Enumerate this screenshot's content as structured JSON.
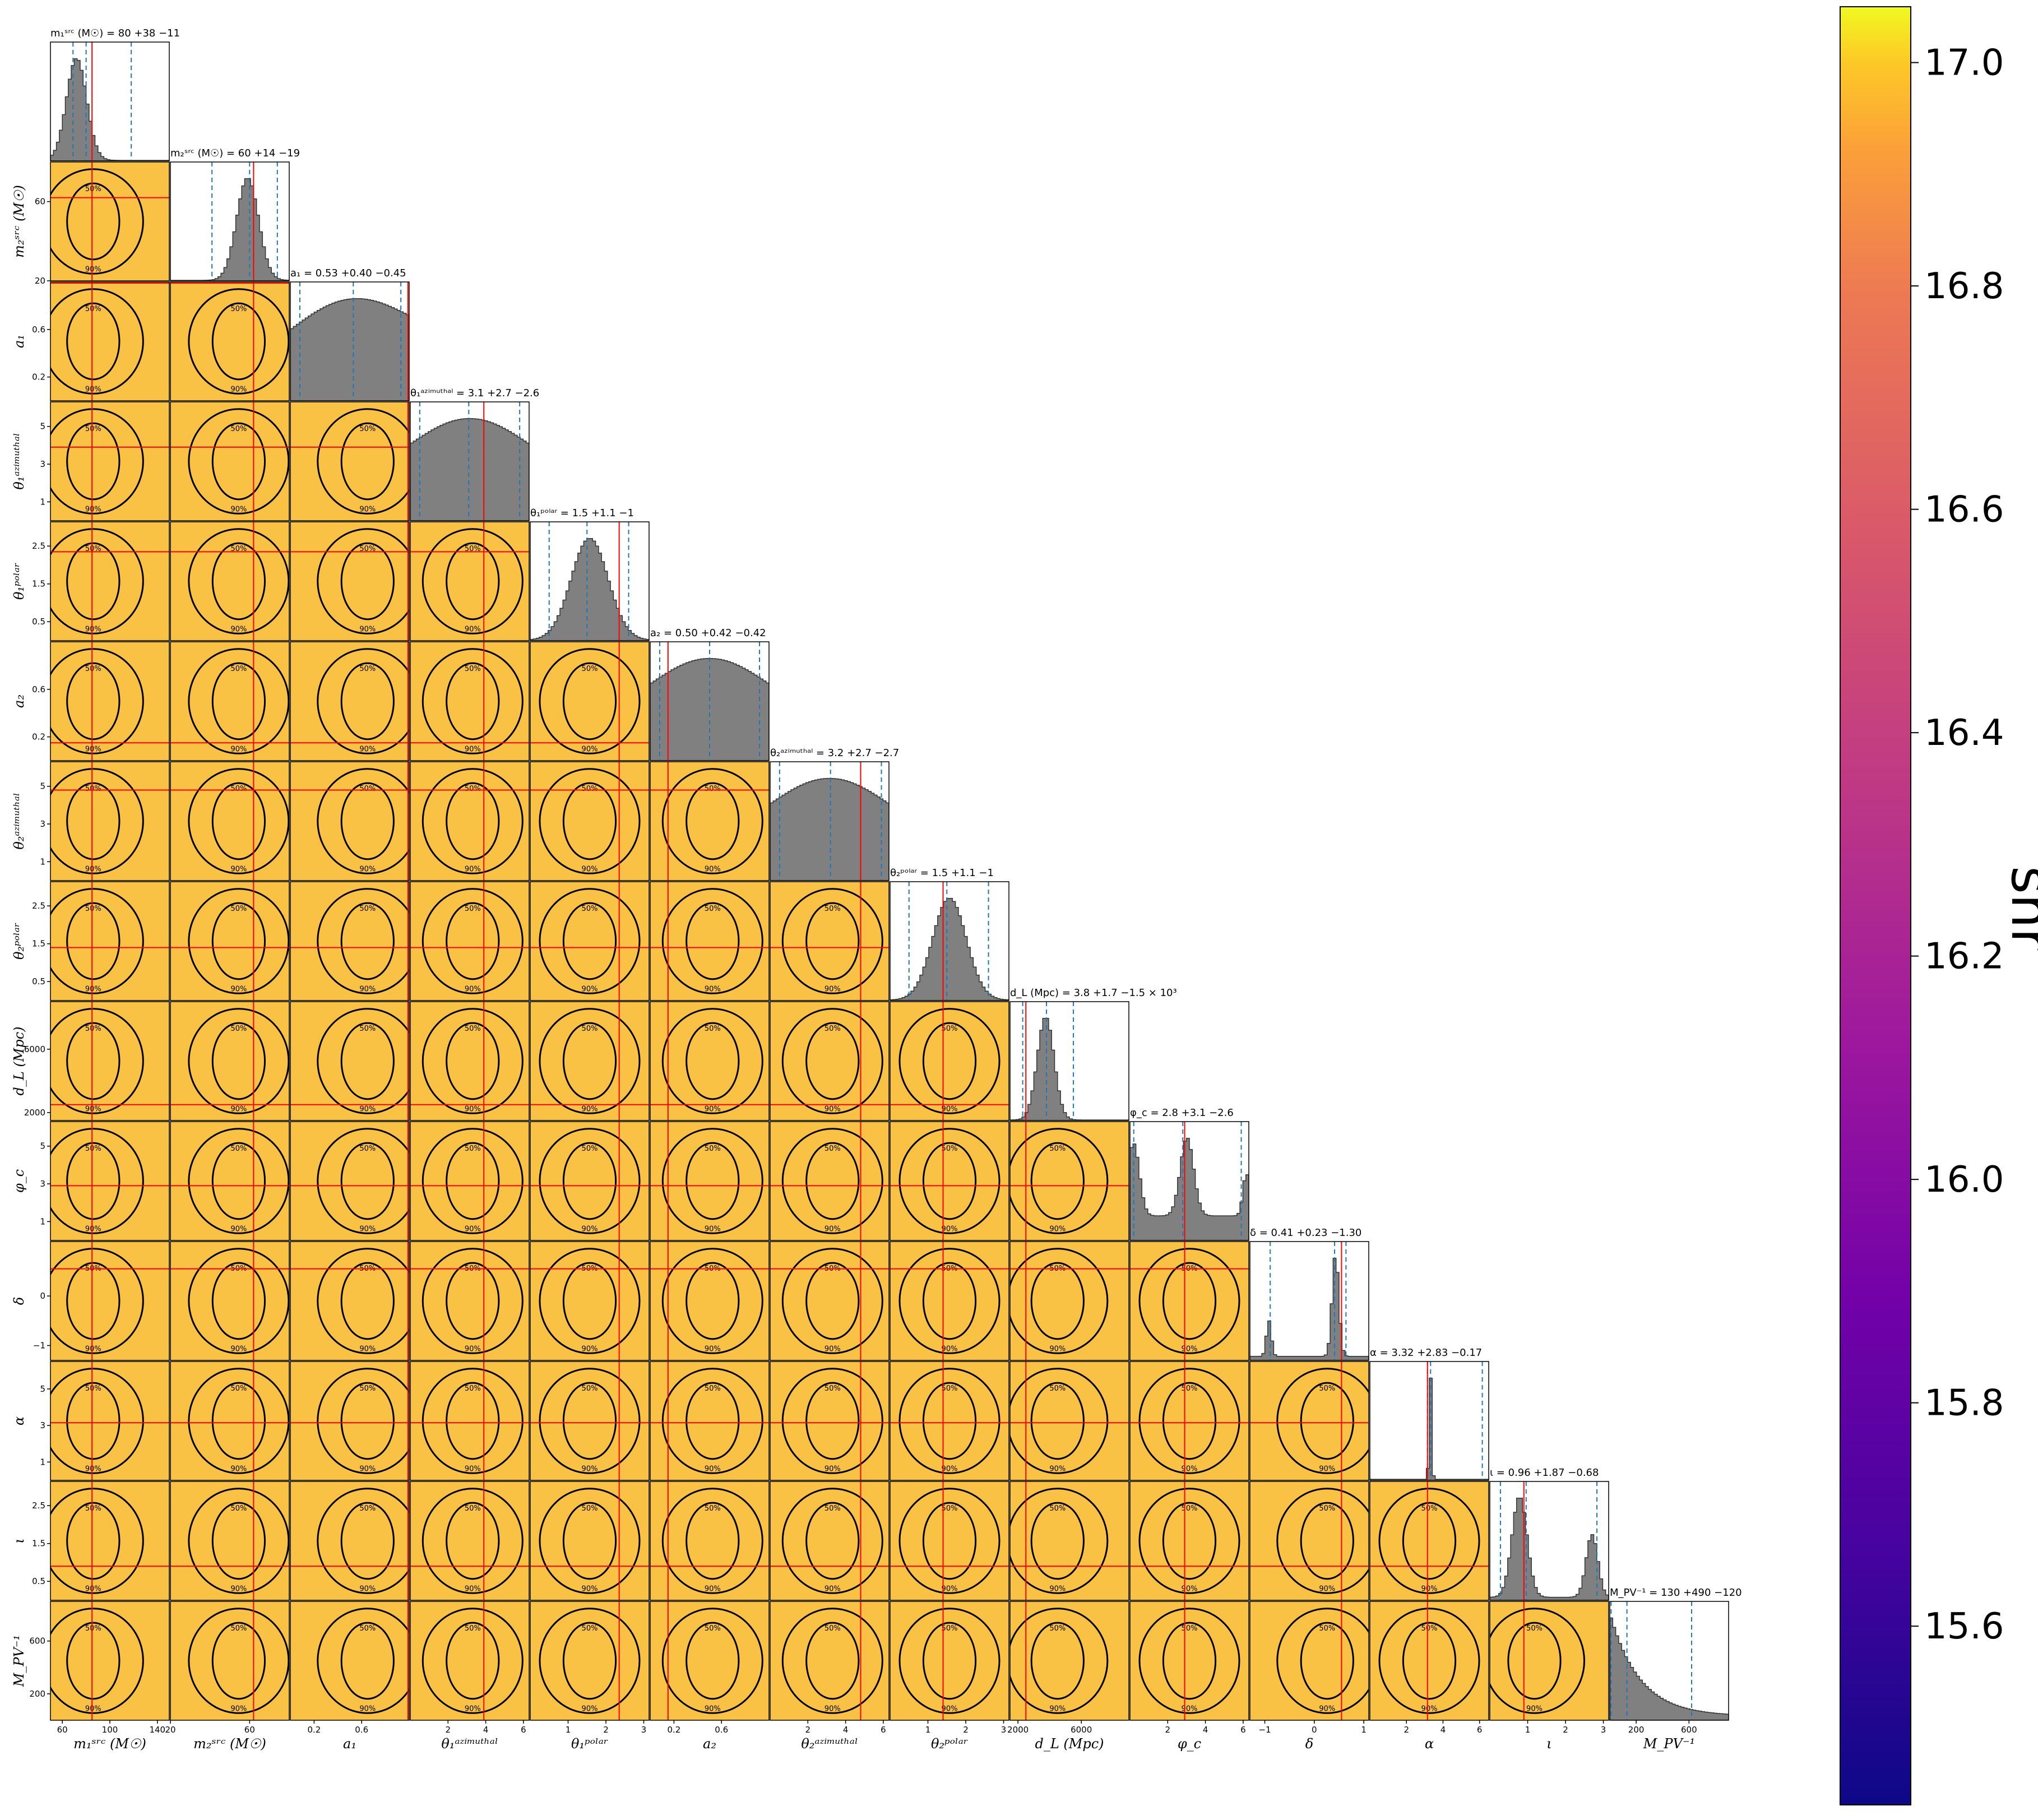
{
  "chart_data": {
    "type": "corner",
    "parameters": [
      {
        "key": "m1",
        "label": "m₁ˢʳᶜ (M☉)",
        "title": "m₁ˢʳᶜ (M☉) = 80 +38 −11",
        "ticks": [
          {
            "v": 60,
            "t": "60"
          },
          {
            "v": 100,
            "t": "100"
          },
          {
            "v": 140,
            "t": "140"
          }
        ],
        "yticks": [],
        "range": [
          50,
          150
        ],
        "truth": 85,
        "median": 80,
        "q": [
          69,
          118
        ],
        "peak": 0.22,
        "width": 0.12
      },
      {
        "key": "m2",
        "label": "m₂ˢʳᶜ (M☉)",
        "title": "m₂ˢʳᶜ (M☉) = 60 +14 −19",
        "ticks": [
          {
            "v": 20,
            "t": "20"
          },
          {
            "v": 60,
            "t": "60"
          }
        ],
        "yticks": [
          {
            "v": 20,
            "t": "20"
          },
          {
            "v": 60,
            "t": "60"
          }
        ],
        "range": [
          20,
          80
        ],
        "truth": 62,
        "median": 60,
        "q": [
          41,
          74
        ],
        "peak": 0.65,
        "width": 0.13
      },
      {
        "key": "a1",
        "label": "a₁",
        "title": "a₁ = 0.53 +0.40 −0.45",
        "ticks": [
          {
            "v": 0.2,
            "t": "0.2"
          },
          {
            "v": 0.6,
            "t": "0.6"
          }
        ],
        "yticks": [
          {
            "v": 0.2,
            "t": "0.2"
          },
          {
            "v": 0.6,
            "t": "0.6"
          }
        ],
        "range": [
          0,
          1
        ],
        "truth": 0.99,
        "median": 0.53,
        "q": [
          0.08,
          0.93
        ],
        "peak": 0.8,
        "width": 0.5
      },
      {
        "key": "th1a",
        "label": "θ₁ᵃᶻⁱᵐᵘᵗʰᵃˡ",
        "title": "θ₁ᵃᶻⁱᵐᵘᵗʰᵃˡ = 3.1 +2.7 −2.6",
        "ticks": [
          {
            "v": 2,
            "t": "2"
          },
          {
            "v": 4,
            "t": "4"
          },
          {
            "v": 6,
            "t": "6"
          }
        ],
        "yticks": [
          {
            "v": 1,
            "t": "1"
          },
          {
            "v": 3,
            "t": "3"
          },
          {
            "v": 5,
            "t": "5"
          }
        ],
        "range": [
          0,
          6.3
        ],
        "truth": 3.9,
        "median": 3.1,
        "q": [
          0.5,
          5.8
        ],
        "peak": 0.55,
        "width": 0.6
      },
      {
        "key": "th1p",
        "label": "θ₁ᵖᵒˡᵃʳ",
        "title": "θ₁ᵖᵒˡᵃʳ = 1.5 +1.1 −1",
        "ticks": [
          {
            "v": 1,
            "t": "1"
          },
          {
            "v": 2,
            "t": "2"
          },
          {
            "v": 3,
            "t": "3"
          }
        ],
        "yticks": [
          {
            "v": 0.5,
            "t": "0.5"
          },
          {
            "v": 1.5,
            "t": "1.5"
          },
          {
            "v": 2.5,
            "t": "2.5"
          }
        ],
        "range": [
          0,
          3.14
        ],
        "truth": 2.35,
        "median": 1.5,
        "q": [
          0.5,
          2.6
        ],
        "peak": 0.5,
        "width": 0.22
      },
      {
        "key": "a2",
        "label": "a₂",
        "title": "a₂ = 0.50 +0.42 −0.42",
        "ticks": [
          {
            "v": 0.2,
            "t": "0.2"
          },
          {
            "v": 0.6,
            "t": "0.6"
          }
        ],
        "yticks": [
          {
            "v": 0.2,
            "t": "0.2"
          },
          {
            "v": 0.6,
            "t": "0.6"
          }
        ],
        "range": [
          0,
          1
        ],
        "truth": 0.15,
        "median": 0.5,
        "q": [
          0.08,
          0.92
        ],
        "peak": 0.55,
        "width": 0.6
      },
      {
        "key": "th2a",
        "label": "θ₂ᵃᶻⁱᵐᵘᵗʰᵃˡ",
        "title": "θ₂ᵃᶻⁱᵐᵘᵗʰᵃˡ = 3.2 +2.7 −2.7",
        "ticks": [
          {
            "v": 2,
            "t": "2"
          },
          {
            "v": 4,
            "t": "4"
          },
          {
            "v": 6,
            "t": "6"
          }
        ],
        "yticks": [
          {
            "v": 1,
            "t": "1"
          },
          {
            "v": 3,
            "t": "3"
          },
          {
            "v": 5,
            "t": "5"
          }
        ],
        "range": [
          0,
          6.3
        ],
        "truth": 4.8,
        "median": 3.2,
        "q": [
          0.5,
          5.9
        ],
        "peak": 0.55,
        "width": 0.6
      },
      {
        "key": "th2p",
        "label": "θ₂ᵖᵒˡᵃʳ",
        "title": "θ₂ᵖᵒˡᵃʳ = 1.5 +1.1 −1",
        "ticks": [
          {
            "v": 1,
            "t": "1"
          },
          {
            "v": 2,
            "t": "2"
          },
          {
            "v": 3,
            "t": "3"
          }
        ],
        "yticks": [
          {
            "v": 0.5,
            "t": "0.5"
          },
          {
            "v": 1.5,
            "t": "1.5"
          },
          {
            "v": 2.5,
            "t": "2.5"
          }
        ],
        "range": [
          0,
          3.14
        ],
        "truth": 1.4,
        "median": 1.5,
        "q": [
          0.5,
          2.6
        ],
        "peak": 0.5,
        "width": 0.2
      },
      {
        "key": "dl",
        "label": "d_L (Mpc)",
        "title": "d_L (Mpc) = 3.8 +1.7 −1.5 × 10³",
        "ticks": [
          {
            "v": 2000,
            "t": "2000"
          },
          {
            "v": 6000,
            "t": "6000"
          }
        ],
        "yticks": [
          {
            "v": 2000,
            "t": "2000"
          },
          {
            "v": 6000,
            "t": "6000"
          }
        ],
        "range": [
          1500,
          9000
        ],
        "truth": 2500,
        "median": 3800,
        "q": [
          2300,
          5500
        ],
        "peak": 0.3,
        "width": 0.1
      },
      {
        "key": "phic",
        "label": "φ_c",
        "title": "φ_c = 2.8 +3.1 −2.6",
        "ticks": [
          {
            "v": 2,
            "t": "2"
          },
          {
            "v": 4,
            "t": "4"
          },
          {
            "v": 6,
            "t": "6"
          }
        ],
        "yticks": [
          {
            "v": 1,
            "t": "1"
          },
          {
            "v": 3,
            "t": "3"
          },
          {
            "v": 5,
            "t": "5"
          }
        ],
        "range": [
          0,
          6.3
        ],
        "truth": 2.9,
        "median": 2.8,
        "q": [
          0.2,
          5.9
        ],
        "peak": 0.5,
        "width": 0.15
      },
      {
        "key": "delta",
        "label": "δ",
        "title": "δ = 0.41 +0.23 −1.30",
        "ticks": [
          {
            "v": -1,
            "t": "−1"
          },
          {
            "v": 0,
            "t": "0"
          },
          {
            "v": 1,
            "t": "1"
          }
        ],
        "yticks": [
          {
            "v": -1,
            "t": "−1"
          },
          {
            "v": 0,
            "t": "0"
          }
        ],
        "range": [
          -1.3,
          1.1
        ],
        "truth": 0.55,
        "median": 0.41,
        "q": [
          -0.89,
          0.64
        ],
        "peak": 0.8,
        "width": 0.04
      },
      {
        "key": "alpha",
        "label": "α",
        "title": "α = 3.32 +2.83 −0.17",
        "ticks": [
          {
            "v": 2,
            "t": "2"
          },
          {
            "v": 4,
            "t": "4"
          },
          {
            "v": 6,
            "t": "6"
          }
        ],
        "yticks": [
          {
            "v": 1,
            "t": "1"
          },
          {
            "v": 3,
            "t": "3"
          },
          {
            "v": 5,
            "t": "5"
          }
        ],
        "range": [
          0,
          6.5
        ],
        "truth": 3.15,
        "median": 3.32,
        "q": [
          3.15,
          6.15
        ],
        "peak": 0.5,
        "width": 0.015
      },
      {
        "key": "iota",
        "label": "ι",
        "title": "ι = 0.96 +1.87 −0.68",
        "ticks": [
          {
            "v": 1,
            "t": "1"
          },
          {
            "v": 2,
            "t": "2"
          },
          {
            "v": 3,
            "t": "3"
          }
        ],
        "yticks": [
          {
            "v": 0.5,
            "t": "0.5"
          },
          {
            "v": 1.5,
            "t": "1.5"
          },
          {
            "v": 2.5,
            "t": "2.5"
          }
        ],
        "range": [
          0,
          3.14
        ],
        "truth": 0.9,
        "median": 0.96,
        "q": [
          0.28,
          2.83
        ],
        "peak": 0.25,
        "width": 0.08
      },
      {
        "key": "mpv",
        "label": "M_PV⁻¹",
        "title": "M_PV⁻¹ = 130 +490 −120",
        "ticks": [
          {
            "v": 200,
            "t": "200"
          },
          {
            "v": 600,
            "t": "600"
          }
        ],
        "yticks": [
          {
            "v": 200,
            "t": "200"
          },
          {
            "v": 600,
            "t": "600"
          }
        ],
        "range": [
          0,
          900
        ],
        "truth": null,
        "median": 130,
        "q": [
          10,
          620
        ],
        "peak": 0.05,
        "width": 0.15
      }
    ],
    "contour_levels": [
      "50%",
      "90%"
    ],
    "colorbar": {
      "label": "snr",
      "ticks": [
        {
          "v": 15.6,
          "t": "15.6"
        },
        {
          "v": 15.8,
          "t": "15.8"
        },
        {
          "v": 16.0,
          "t": "16.0"
        },
        {
          "v": 16.2,
          "t": "16.2"
        },
        {
          "v": 16.4,
          "t": "16.4"
        },
        {
          "v": 16.6,
          "t": "16.6"
        },
        {
          "v": 16.8,
          "t": "16.8"
        },
        {
          "v": 17.0,
          "t": "17.0"
        }
      ],
      "range": [
        15.44,
        17.05
      ],
      "colormap": "plasma"
    },
    "colors": {
      "hist_fill": "#808080",
      "truth_line": "#ff0000",
      "quantile_line": "#1f77b4",
      "contour": "#000000",
      "scatter_bg": "#f9bb30"
    }
  }
}
